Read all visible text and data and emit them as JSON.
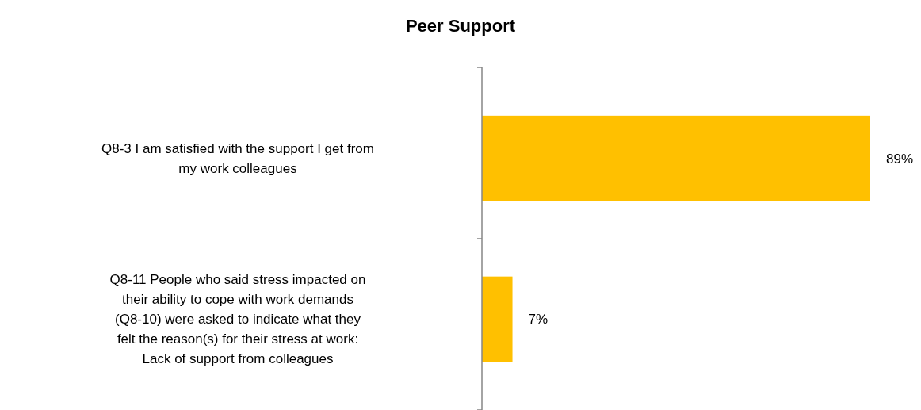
{
  "chart_data": {
    "type": "bar",
    "orientation": "horizontal",
    "title": "Peer Support",
    "categories": [
      "Q8-3 I am satisfied with the support I get from my work colleagues",
      "Q8-11 People who said stress impacted on their ability to cope with work demands (Q8-10) were asked to indicate what they felt the reason(s) for their stress at work: Lack of support from colleagues"
    ],
    "values": [
      89,
      7
    ],
    "color": "#ffc000",
    "value_labels": [
      "89%",
      "7%"
    ]
  }
}
